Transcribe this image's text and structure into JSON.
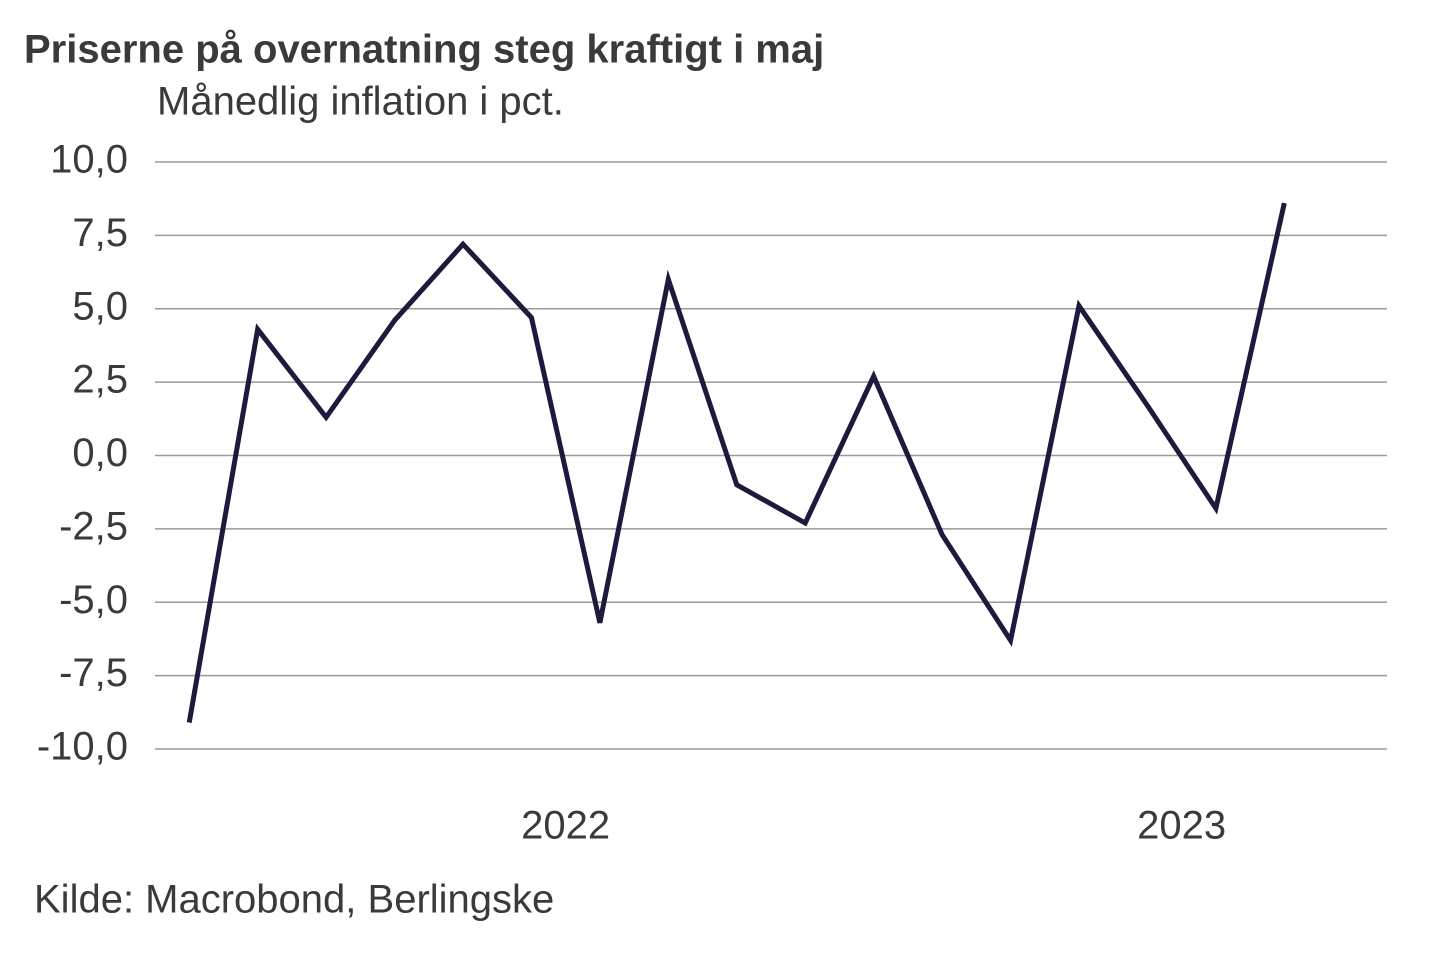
{
  "chart_data": {
    "type": "line",
    "title": "Priserne på overnatning steg kraftigt i maj",
    "subtitle": "Månedlig inflation i pct.",
    "source": "Kilde: Macrobond, Berlingske",
    "x": [
      0,
      1,
      2,
      3,
      4,
      5,
      6,
      7,
      8,
      9,
      10,
      11,
      12,
      13,
      14,
      15,
      16
    ],
    "series": [
      {
        "name": null,
        "color": "#1c1a3d",
        "values": [
          -9.1,
          4.3,
          1.3,
          4.6,
          7.2,
          4.7,
          -5.7,
          6.0,
          -1.0,
          -2.3,
          2.7,
          -2.7,
          -6.3,
          5.1,
          1.7,
          -1.8,
          8.6
        ]
      }
    ],
    "xlim": [
      -0.5,
      17.5
    ],
    "xticks": [
      {
        "value": 5.5,
        "label": "2022"
      },
      {
        "value": 14.5,
        "label": "2023"
      }
    ],
    "ylim": [
      -10,
      10
    ],
    "yticks": [
      {
        "value": -10,
        "label": "-10,0"
      },
      {
        "value": -7.5,
        "label": "-7,5"
      },
      {
        "value": -5,
        "label": "-5,0"
      },
      {
        "value": -2.5,
        "label": "-2,5"
      },
      {
        "value": 0,
        "label": "0,0"
      },
      {
        "value": 2.5,
        "label": "2,5"
      },
      {
        "value": 5,
        "label": "5,0"
      },
      {
        "value": 7.5,
        "label": "7,5"
      },
      {
        "value": 10,
        "label": "10,0"
      }
    ],
    "grid": true
  }
}
